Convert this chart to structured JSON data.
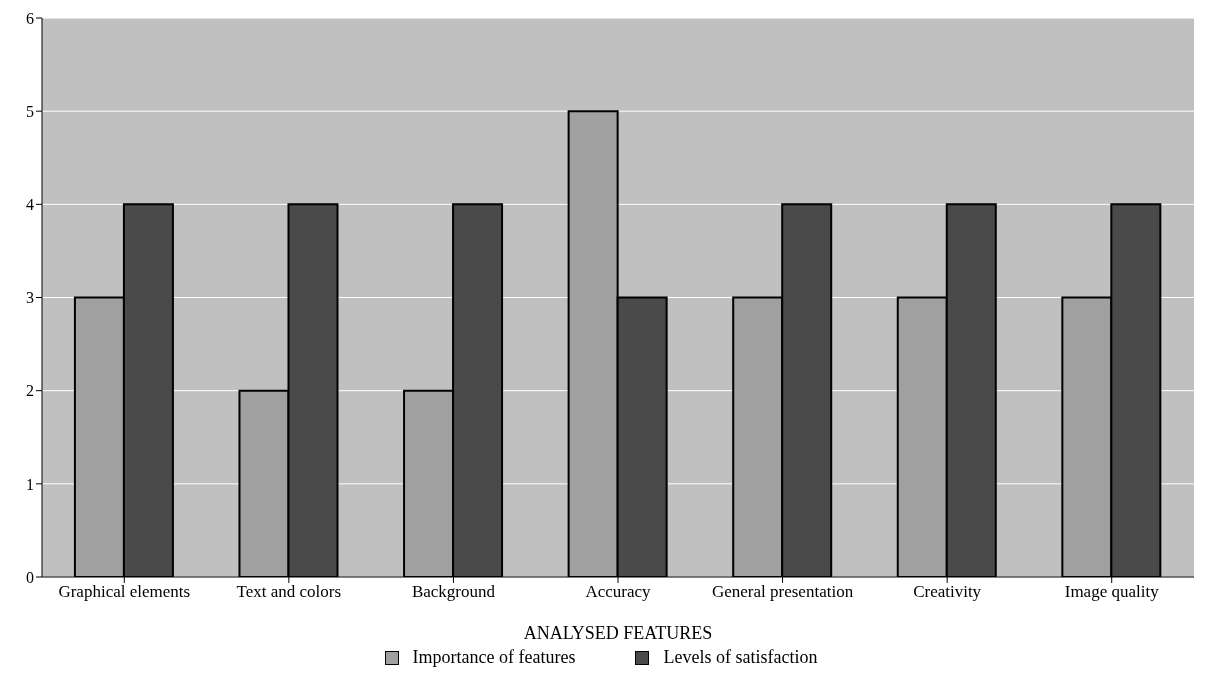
{
  "chart_data": {
    "type": "bar",
    "xlabel": "ANALYSED FEATURES",
    "categories": [
      "Graphical elements",
      "Text and colors",
      "Background",
      "Accuracy",
      "General presentation",
      "Creativity",
      "Image quality"
    ],
    "series": [
      {
        "name": "Importance of features",
        "color": "#a0a0a0",
        "values": [
          3,
          2,
          2,
          5,
          3,
          3,
          3
        ]
      },
      {
        "name": "Levels of satisfaction",
        "color": "#4a4a4a",
        "values": [
          4,
          4,
          4,
          3,
          4,
          4,
          4
        ]
      }
    ],
    "ylim": [
      0,
      6
    ],
    "yticks": [
      0,
      1,
      2,
      3,
      4,
      5,
      6
    ],
    "grid": "y",
    "legend": "bottom"
  }
}
